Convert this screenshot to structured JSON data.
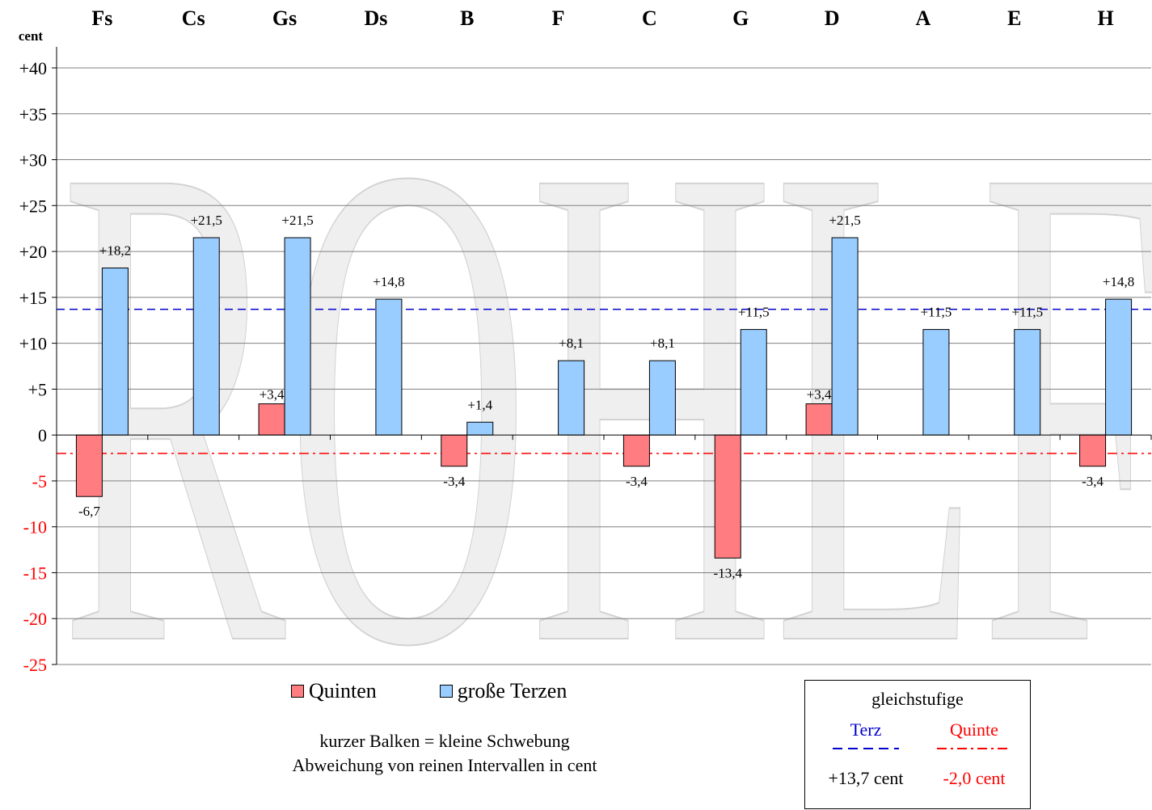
{
  "chart_data": {
    "type": "bar",
    "categories": [
      "Fs",
      "Cs",
      "Gs",
      "Ds",
      "B",
      "F",
      "C",
      "G",
      "D",
      "A",
      "E",
      "H"
    ],
    "series": [
      {
        "name": "Quinten",
        "values": [
          -6.7,
          0,
          3.4,
          0,
          -3.4,
          0,
          -3.4,
          -13.4,
          3.4,
          0,
          0,
          -3.4
        ],
        "labels": [
          "-6,7",
          "",
          "+3,4",
          "",
          "-3,4",
          "",
          "-3,4",
          "-13,4",
          "+3,4",
          "",
          "",
          "-3,4"
        ]
      },
      {
        "name": "große Terzen",
        "values": [
          18.2,
          21.5,
          21.5,
          14.8,
          1.4,
          8.1,
          8.1,
          11.5,
          21.5,
          11.5,
          11.5,
          14.8
        ],
        "labels": [
          "+18,2",
          "+21,5",
          "+21,5",
          "+14,8",
          "+1,4",
          "+8,1",
          "+8,1",
          "+11,5",
          "+21,5",
          "+11,5",
          "+11,5",
          "+14,8"
        ]
      }
    ],
    "ylabel": "cent",
    "ylim": [
      -25,
      40
    ],
    "yticks": [
      40,
      35,
      30,
      25,
      20,
      15,
      10,
      5,
      0,
      -5,
      -10,
      -15,
      -20,
      -25
    ],
    "ytick_labels": [
      "+40",
      "+35",
      "+30",
      "+25",
      "+20",
      "+15",
      "+10",
      "+5",
      "0",
      "-5",
      "-10",
      "-15",
      "-20",
      "-25"
    ],
    "grid": true,
    "category_axis_position": "top",
    "legend_position": "bottom",
    "reference_lines": [
      {
        "name": "Terz",
        "value": 13.7,
        "color": "#0000cc",
        "style": "dashed"
      },
      {
        "name": "Quinte",
        "value": -2.0,
        "color": "#ff0000",
        "style": "dash-dot"
      }
    ],
    "watermark": "ROHLF"
  },
  "colors": {
    "quinten": "#ff7c80",
    "terzen": "#99ccff",
    "negative_tick": "#ff0000",
    "terz_line": "#0000cc",
    "quinte_line": "#ff0000"
  },
  "legend": {
    "quinten": "Quinten",
    "terzen": "große Terzen"
  },
  "notes": {
    "line1": "kurzer Balken = kleine Schwebung",
    "line2": "Abweichung von reinen Intervallen in cent"
  },
  "equal_temperament": {
    "title": "gleichstufige",
    "terz_label": "Terz",
    "quinte_label": "Quinte",
    "terz_value": "+13,7 cent",
    "quinte_value": "-2,0 cent"
  }
}
